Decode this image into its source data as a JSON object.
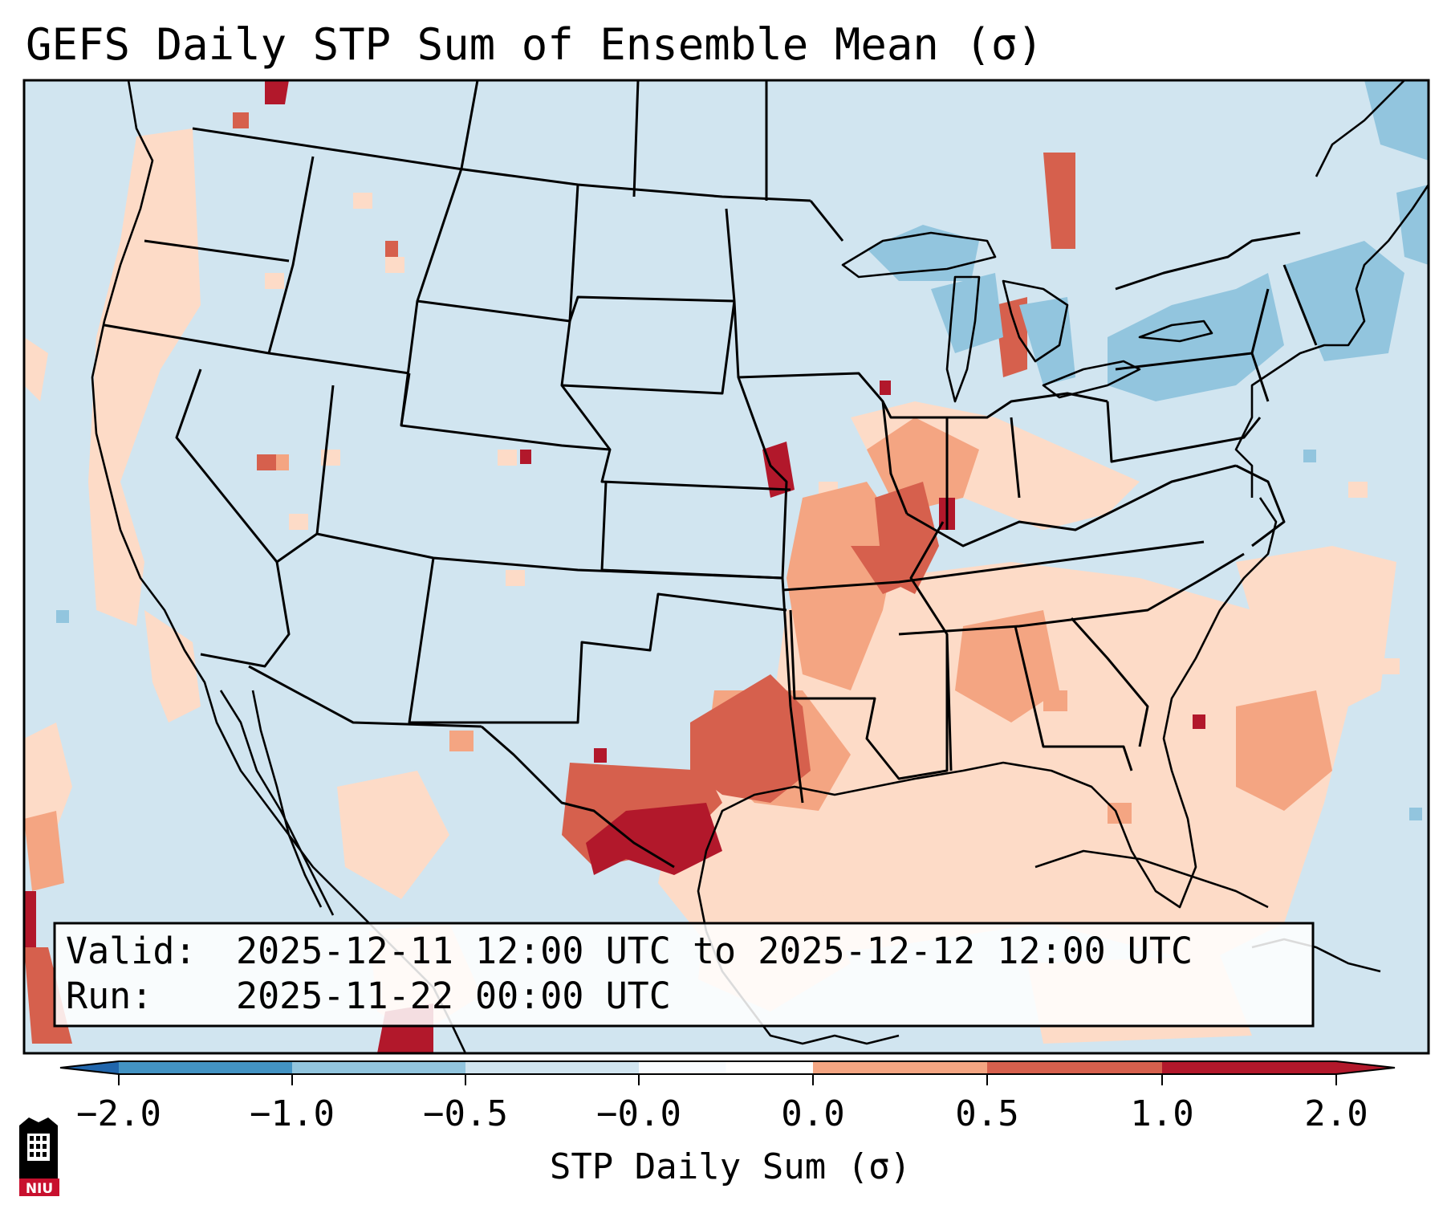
{
  "title": "GEFS Daily STP Sum of Ensemble Mean (σ)",
  "info": {
    "valid_label": "Valid:",
    "valid_value": "2025-12-11 12:00 UTC to 2025-12-12 12:00 UTC",
    "run_label": "Run:",
    "run_value": "2025-11-22 00:00 UTC"
  },
  "colorbar": {
    "label": "STP Daily Sum (σ)",
    "ticks": [
      "−2.0",
      "−1.0",
      "−0.5",
      "−0.0",
      "0.0",
      "0.5",
      "1.0",
      "2.0"
    ],
    "segment_colors": [
      "#4393c3",
      "#92c5de",
      "#d1e5f0",
      "#fddbc7",
      "#f4a582",
      "#d6604d",
      "#b2182b"
    ],
    "under_color": "#2166ac",
    "over_color": "#b2182b",
    "neutral_color": "#ffffff"
  },
  "map": {
    "background_color": "#d1e5f0",
    "anomaly_classes": [
      {
        "name": "strong-positive",
        "color": "#b2182b"
      },
      {
        "name": "positive",
        "color": "#d6604d"
      },
      {
        "name": "weak-positive",
        "color": "#f4a582"
      },
      {
        "name": "slight-positive",
        "color": "#fddbc7"
      },
      {
        "name": "slight-negative",
        "color": "#92c5de"
      }
    ]
  },
  "logo": {
    "text": "NIU",
    "icon": "university-building-icon"
  }
}
